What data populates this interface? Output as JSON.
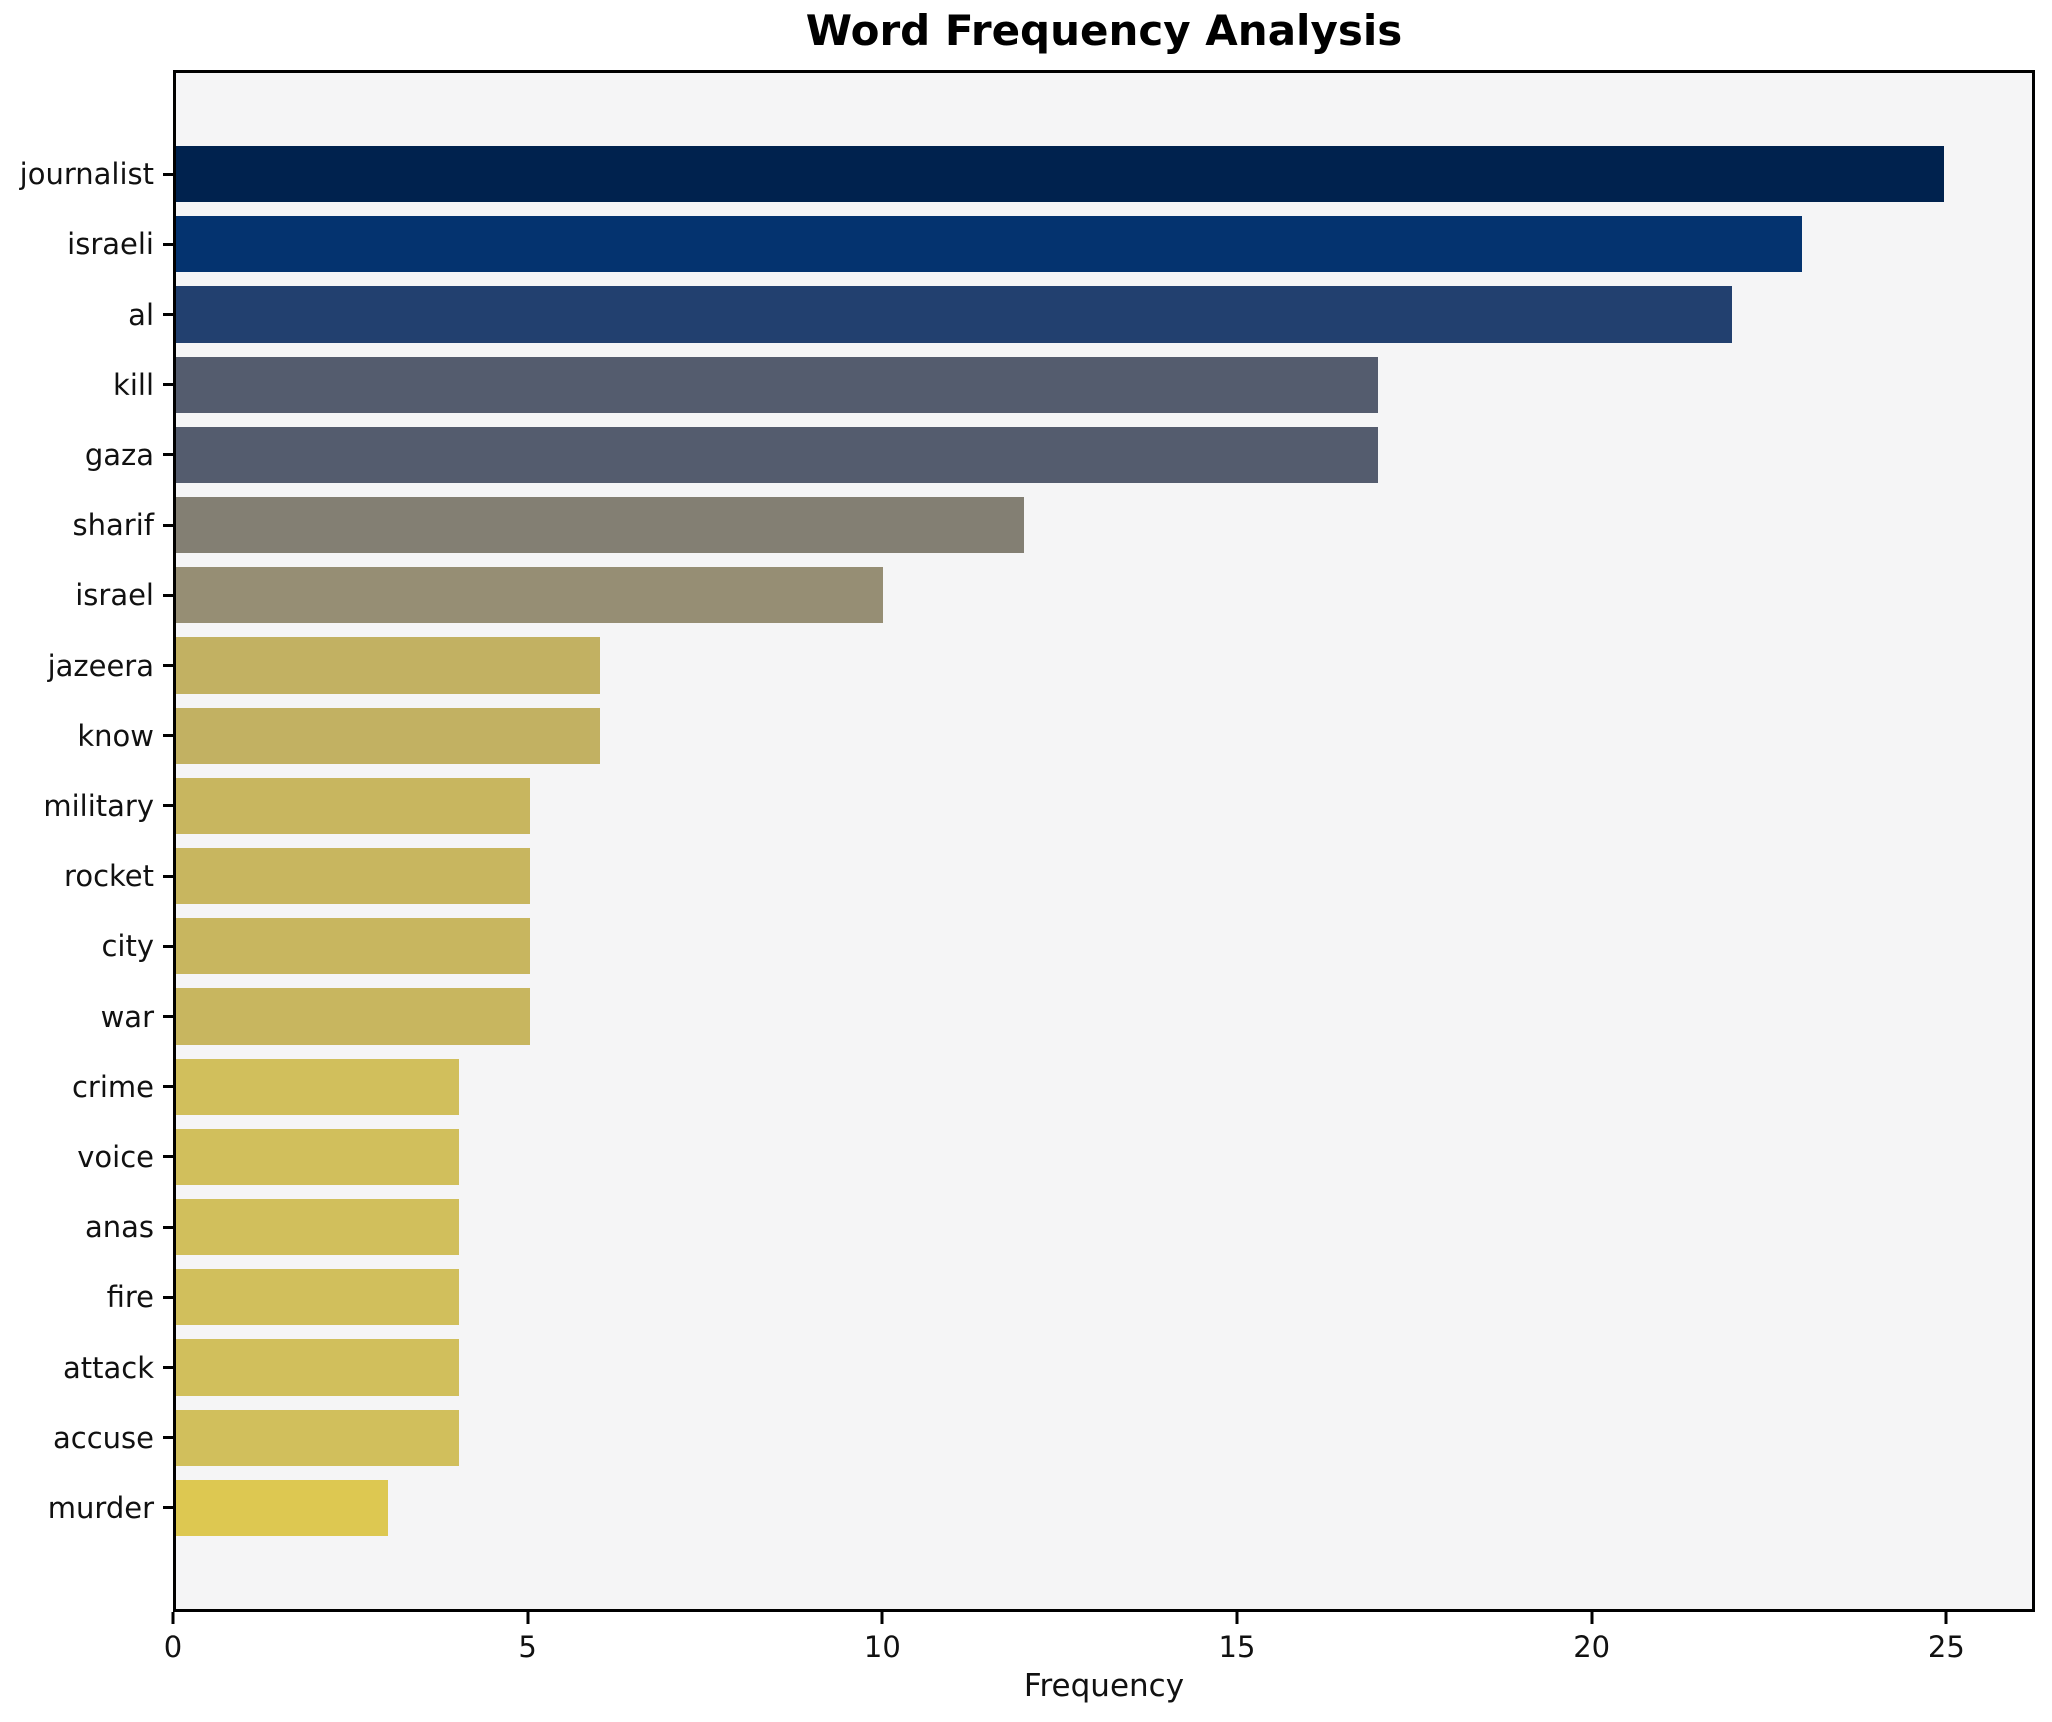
{
  "figure": {
    "title": "Word Frequency Analysis",
    "background": "#ffffff",
    "plot_background": "#f5f5f6",
    "spine_color": "#000000"
  },
  "chart_data": {
    "type": "bar",
    "orientation": "horizontal",
    "title": "Word Frequency Analysis",
    "xlabel": "Frequency",
    "ylabel": "",
    "categories": [
      "journalist",
      "israeli",
      "al",
      "kill",
      "gaza",
      "sharif",
      "israel",
      "jazeera",
      "know",
      "military",
      "rocket",
      "city",
      "war",
      "crime",
      "voice",
      "anas",
      "fire",
      "attack",
      "accuse",
      "murder"
    ],
    "values": [
      25,
      23,
      22,
      17,
      17,
      12,
      10,
      6,
      6,
      5,
      5,
      5,
      5,
      4,
      4,
      4,
      4,
      4,
      4,
      3
    ],
    "bar_colors": [
      "#00224e",
      "#04336f",
      "#22406f",
      "#545c6e",
      "#545c6e",
      "#837f73",
      "#968e74",
      "#c2b162",
      "#c2b162",
      "#c8b65f",
      "#c8b65f",
      "#c8b65f",
      "#c8b65f",
      "#d1bf5c",
      "#d1bf5c",
      "#d1bf5c",
      "#d1bf5c",
      "#d1bf5c",
      "#d1bf5c",
      "#ddc851"
    ],
    "xlim": [
      0,
      26.25
    ],
    "xticks": [
      0,
      5,
      10,
      15,
      20,
      25
    ],
    "grid": false,
    "legend_position": "none"
  }
}
